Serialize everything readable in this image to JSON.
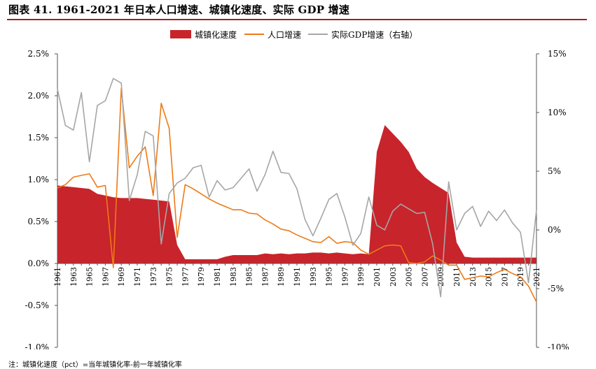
{
  "title": "图表 41. 1961-2021 年日本人口增速、城镇化速度、实际 GDP 增速",
  "footnote": "注：城镇化速度（pct）=当年城镇化率-前一年城镇化率",
  "colors": {
    "urban": "#c8242b",
    "pop": "#ee7a16",
    "gdp": "#a6a6a6",
    "rule": "#a61d24",
    "axis": "#555555"
  },
  "chart_data": {
    "type": "area",
    "legend_position": "top-center",
    "grid": false,
    "x_start": 1961,
    "x_end": 2021,
    "x_tick_labels": [
      "1961",
      "1963",
      "1965",
      "1967",
      "1969",
      "1971",
      "1973",
      "1975",
      "1977",
      "1979",
      "1981",
      "1983",
      "1985",
      "1987",
      "1989",
      "1991",
      "1993",
      "1995",
      "1997",
      "1999",
      "2001",
      "2003",
      "2005",
      "2007",
      "2009",
      "2011",
      "2013",
      "2015",
      "2017",
      "2019",
      "2021"
    ],
    "y_left": {
      "min": -0.01,
      "max": 0.025,
      "ticks": [
        -0.01,
        -0.005,
        0,
        0.005,
        0.01,
        0.015,
        0.02,
        0.025
      ],
      "tick_labels": [
        "-1.0%",
        "-0.5%",
        "0.0%",
        "0.5%",
        "1.0%",
        "1.5%",
        "2.0%",
        "2.5%"
      ]
    },
    "y_right": {
      "min": -0.1,
      "max": 0.15,
      "ticks": [
        -0.1,
        -0.05,
        0,
        0.05,
        0.1,
        0.15
      ],
      "tick_labels": [
        "-10%",
        "-5%",
        "0%",
        "5%",
        "10%",
        "15%"
      ]
    },
    "series": [
      {
        "name": "城镇化速度",
        "kind": "area",
        "axis": "left",
        "values": [
          0.0093,
          0.0092,
          0.0091,
          0.009,
          0.0089,
          0.0083,
          0.0081,
          0.0079,
          0.0078,
          0.0078,
          0.0078,
          0.0077,
          0.0076,
          0.0075,
          0.0074,
          0.0022,
          0.0005,
          0.0005,
          0.0005,
          0.0005,
          0.0005,
          0.0008,
          0.001,
          0.001,
          0.001,
          0.001,
          0.0012,
          0.0011,
          0.0012,
          0.0011,
          0.0012,
          0.0012,
          0.0013,
          0.0013,
          0.0012,
          0.0013,
          0.0012,
          0.0011,
          0.0012,
          0.0011,
          0.0133,
          0.0165,
          0.0155,
          0.0145,
          0.0133,
          0.0113,
          0.0103,
          0.0096,
          0.009,
          0.0084,
          0.0025,
          0.0008,
          0.0007,
          0.0007,
          0.0007,
          0.0007,
          0.0007,
          0.0007,
          0.0007,
          0.0007,
          0.0007
        ]
      },
      {
        "name": "人口增速",
        "kind": "line",
        "axis": "left",
        "values": [
          0.009,
          0.0094,
          0.0103,
          0.0105,
          0.0107,
          0.0091,
          0.0093,
          -0.0005,
          0.0209,
          0.0114,
          0.0128,
          0.0139,
          0.0081,
          0.0191,
          0.0161,
          0.0031,
          0.0094,
          0.0089,
          0.0083,
          0.0077,
          0.0072,
          0.0068,
          0.0064,
          0.0064,
          0.006,
          0.0059,
          0.0052,
          0.0047,
          0.0041,
          0.0039,
          0.0034,
          0.003,
          0.0026,
          0.0025,
          0.0032,
          0.0024,
          0.0026,
          0.0025,
          0.0016,
          0.0011,
          0.0016,
          0.0021,
          0.0022,
          0.0021,
          0.0001,
          0.0,
          0.0002,
          0.0009,
          0.0004,
          -0.0002,
          -0.0002,
          -0.0019,
          -0.0017,
          -0.0015,
          -0.0016,
          -0.0011,
          -0.0007,
          -0.0012,
          -0.0016,
          -0.0027,
          -0.0046
        ]
      },
      {
        "name": "实际GDP增速（右轴）",
        "kind": "line",
        "axis": "right",
        "values": [
          0.12,
          0.089,
          0.085,
          0.117,
          0.058,
          0.106,
          0.11,
          0.129,
          0.125,
          0.025,
          0.047,
          0.084,
          0.08,
          -0.012,
          0.031,
          0.04,
          0.044,
          0.053,
          0.055,
          0.028,
          0.042,
          0.034,
          0.036,
          0.044,
          0.052,
          0.033,
          0.047,
          0.067,
          0.049,
          0.048,
          0.035,
          0.009,
          -0.005,
          0.01,
          0.026,
          0.031,
          0.011,
          -0.013,
          -0.003,
          0.028,
          0.004,
          0.0,
          0.016,
          0.022,
          0.018,
          0.014,
          0.015,
          -0.012,
          -0.057,
          0.041,
          0.0,
          0.014,
          0.02,
          0.003,
          0.016,
          0.008,
          0.017,
          0.006,
          -0.002,
          -0.045,
          0.017
        ]
      }
    ]
  }
}
